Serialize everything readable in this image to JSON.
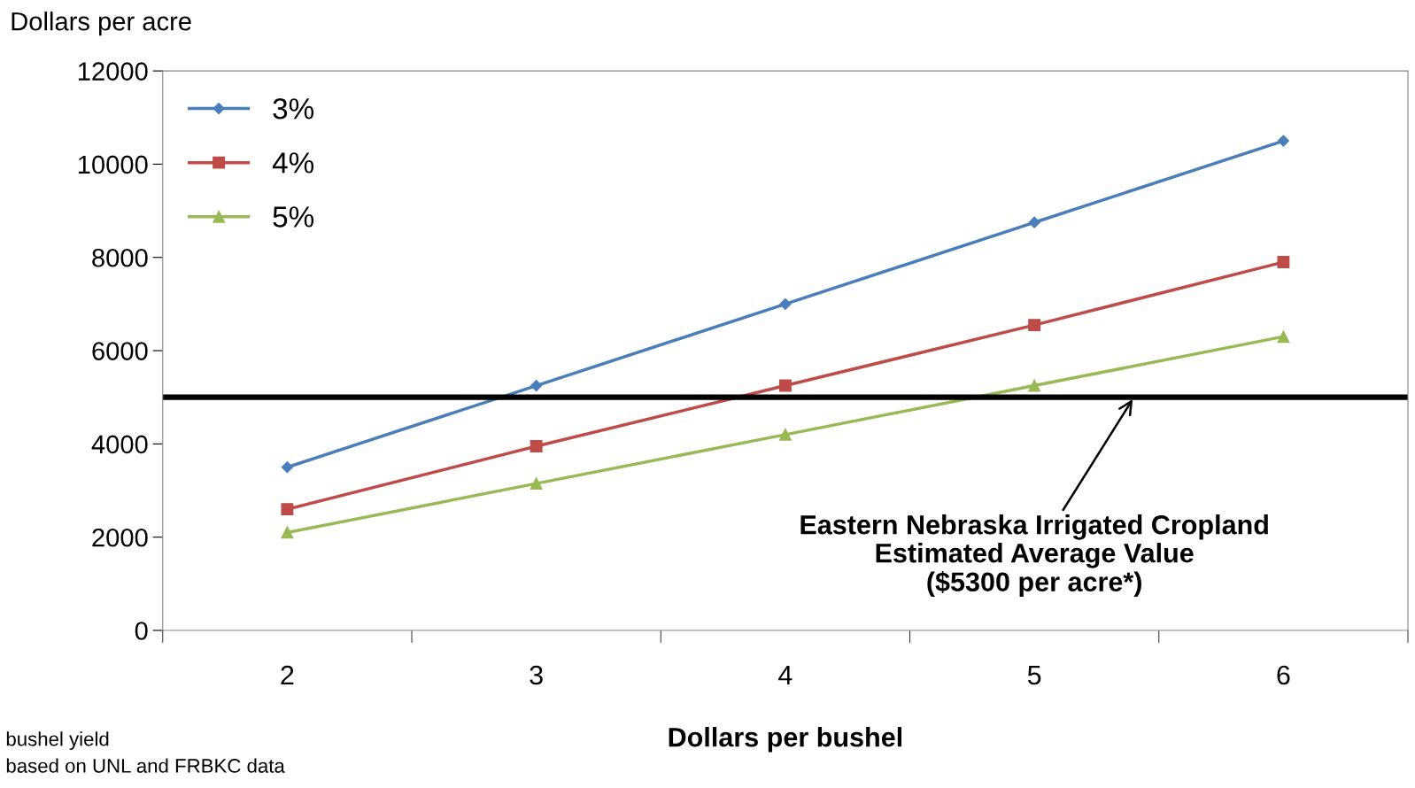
{
  "chart_data": {
    "type": "line",
    "ylabel": "Dollars per acre",
    "xlabel": "Dollars per bushel",
    "categories": [
      "2",
      "3",
      "4",
      "5",
      "6"
    ],
    "series": [
      {
        "name": "3%",
        "color": "#4a7ebb",
        "marker": "diamond",
        "values": [
          3500,
          5250,
          7000,
          8750,
          10500
        ]
      },
      {
        "name": "4%",
        "color": "#be4b48",
        "marker": "square",
        "values": [
          2600,
          3950,
          5250,
          6550,
          7900
        ]
      },
      {
        "name": "5%",
        "color": "#98b954",
        "marker": "triangle",
        "values": [
          2100,
          3150,
          4200,
          5250,
          6300
        ]
      }
    ],
    "ylim": [
      0,
      12000
    ],
    "yticks": [
      0,
      2000,
      4000,
      6000,
      8000,
      10000,
      12000
    ],
    "grid": false,
    "legend": "top left",
    "line_style": "solid",
    "ref_lines": [
      {
        "axis": "y",
        "value": 5000,
        "color": "#000000",
        "line_style": "solid",
        "label": "Eastern Nebraska Irrigated Cropland\nEstimated Average Value\n($5300 per acre*)"
      }
    ],
    "annotations": [
      "bushel yield",
      "based on UNL and FRBKC data"
    ]
  }
}
